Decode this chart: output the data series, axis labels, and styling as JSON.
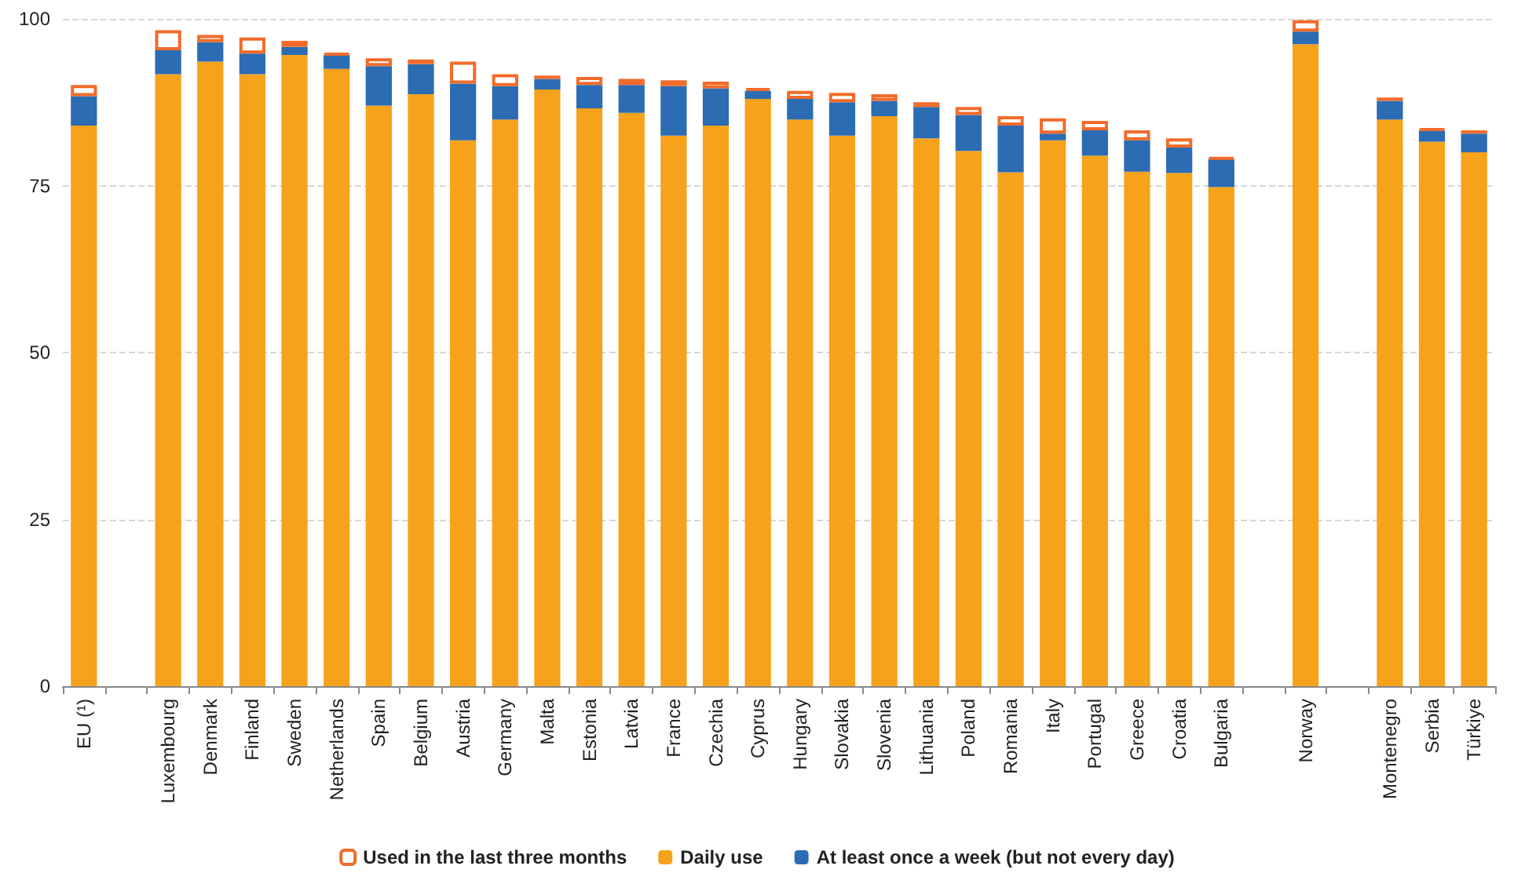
{
  "chart_data": {
    "type": "bar",
    "stacked": true,
    "categories": [
      "EU (¹)",
      null,
      "Luxembourg",
      "Denmark",
      "Finland",
      "Sweden",
      "Netherlands",
      "Spain",
      "Belgium",
      "Austria",
      "Germany",
      "Malta",
      "Estonia",
      "Latvia",
      "France",
      "Czechia",
      "Cyprus",
      "Hungary",
      "Slovakia",
      "Slovenia",
      "Lithuania",
      "Poland",
      "Romania",
      "Italy",
      "Portugal",
      "Greece",
      "Croatia",
      "Bulgaria",
      null,
      "Norway",
      null,
      "Montenegro",
      "Serbia",
      "Türkiye"
    ],
    "series": [
      {
        "name": "Daily use",
        "color": "#f7a21b",
        "values": [
          84,
          null,
          91.7,
          93.6,
          91.7,
          94.6,
          92.5,
          87,
          88.7,
          81.8,
          84.9,
          89.4,
          86.6,
          85.9,
          82.5,
          84,
          88,
          84.9,
          82.5,
          85.4,
          82.1,
          80.2,
          77,
          81.8,
          79.5,
          77.1,
          76.9,
          74.8,
          null,
          96.2,
          null,
          84.9,
          81.6,
          80
        ]
      },
      {
        "name": "At least once a week (but not every day)",
        "color": "#2b6cb3",
        "values": [
          4.4,
          null,
          3.6,
          2.9,
          3.1,
          1.2,
          2.1,
          5.9,
          4.5,
          8.5,
          5,
          1.6,
          3.5,
          4.2,
          7.4,
          5.6,
          1.2,
          3.1,
          5,
          2.3,
          4.7,
          5.4,
          7,
          1,
          3.8,
          4.7,
          3.8,
          4.2,
          null,
          1.9,
          null,
          2.8,
          1.7,
          2.8
        ]
      },
      {
        "name": "Used in the last three months",
        "color": "#f26b2a",
        "values": [
          1.7,
          null,
          3,
          1.1,
          2.4,
          0.9,
          0.2,
          1.2,
          0.7,
          3.3,
          1.8,
          0.5,
          1.2,
          0.9,
          0.9,
          1,
          0.4,
          1.2,
          1.4,
          1,
          0.7,
          1.2,
          1.4,
          2.3,
          1.4,
          1.5,
          1.4,
          0.2,
          null,
          1.7,
          null,
          0.5,
          0.2,
          0.5
        ]
      }
    ],
    "ylim": [
      0,
      100
    ],
    "yticks": [
      0,
      25,
      50,
      75,
      100
    ],
    "grid": "y",
    "legend": "bottom"
  }
}
